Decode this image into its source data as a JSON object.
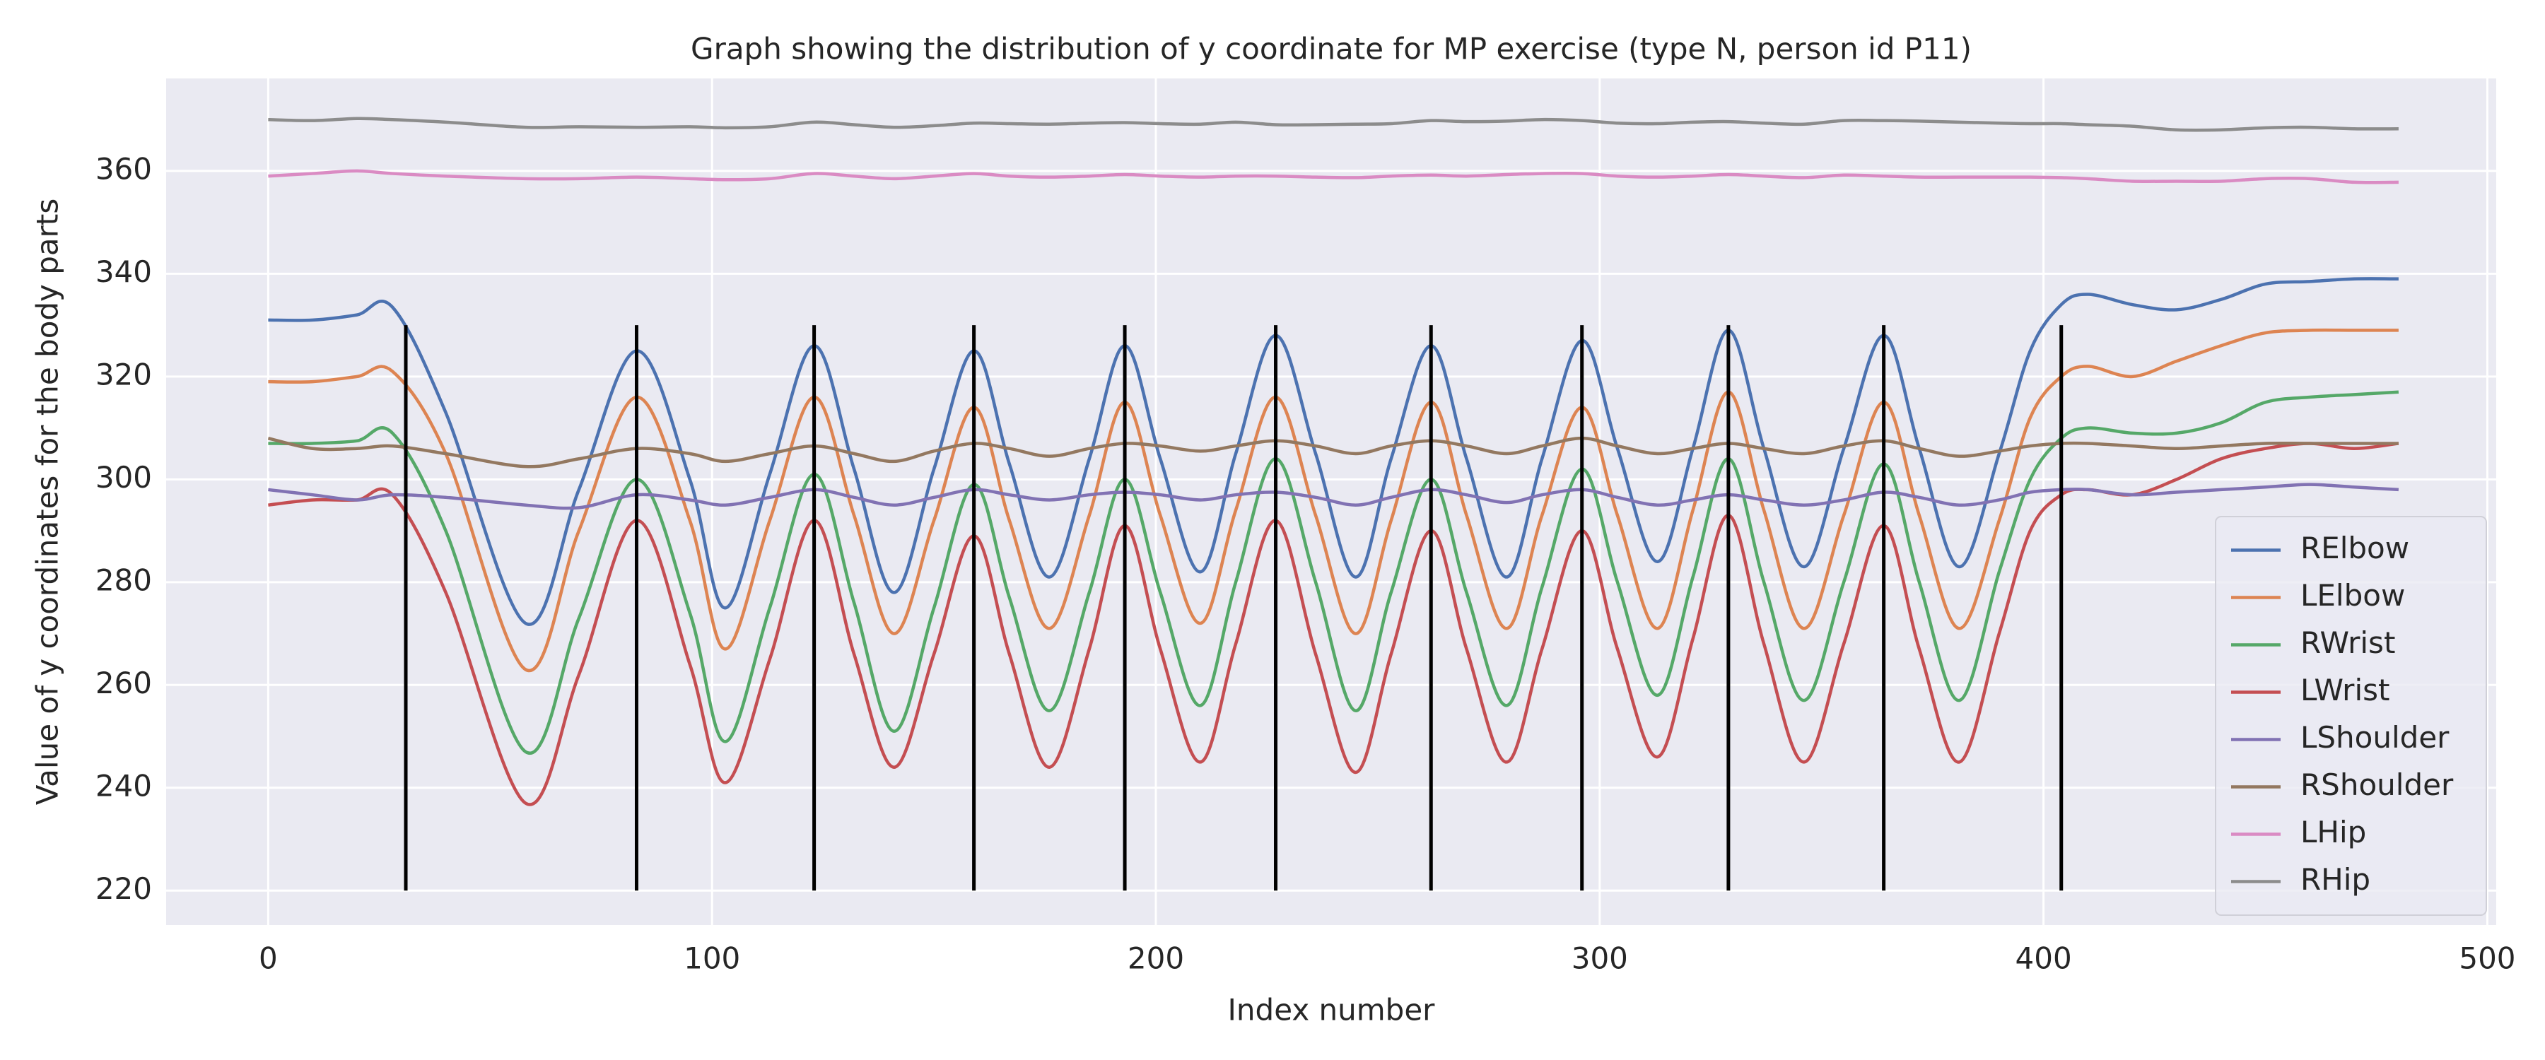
{
  "chart_data": {
    "type": "line",
    "title": "Graph showing the distribution of y coordinate for MP exercise (type N, person id P11)",
    "x_label": "Index number",
    "y_label": "Value of y coordinates for the body parts",
    "xlim": [
      -23,
      502
    ],
    "ylim": [
      213.3,
      378
    ],
    "xticks": [
      0,
      100,
      200,
      300,
      400,
      500
    ],
    "yticks": [
      220,
      240,
      260,
      280,
      300,
      320,
      340,
      360
    ],
    "grid": true,
    "legend": "lower right",
    "x": [
      0,
      10,
      20,
      28,
      40,
      58,
      70,
      83,
      95,
      103,
      113,
      123,
      132,
      141,
      150,
      159,
      167,
      176,
      185,
      193,
      201,
      210,
      218,
      227,
      236,
      245,
      253,
      262,
      270,
      279,
      287,
      296,
      304,
      313,
      321,
      329,
      337,
      346,
      355,
      364,
      372,
      381,
      390,
      397,
      404,
      410,
      420,
      430,
      440,
      450,
      460,
      470,
      480
    ],
    "series": [
      {
        "name": "RElbow",
        "color": "#4c72b0",
        "values": [
          331,
          331,
          332,
          333.5,
          313,
          272,
          298,
          325,
          300,
          275,
          301,
          326,
          302,
          278,
          302,
          325,
          303,
          281,
          304,
          326,
          304,
          282,
          305,
          328,
          305,
          281,
          304,
          326,
          304,
          281,
          304,
          327,
          306,
          284,
          306,
          329,
          306,
          283,
          306,
          328,
          306,
          283,
          305,
          325,
          334,
          336,
          334,
          333,
          335,
          338,
          338.5,
          339,
          339
        ]
      },
      {
        "name": "LElbow",
        "color": "#dd8452",
        "values": [
          319,
          319,
          320,
          321,
          305,
          263,
          290,
          316,
          292,
          267,
          292,
          316,
          293,
          270,
          292,
          314,
          292,
          271,
          293,
          315,
          293,
          272,
          294,
          316,
          293,
          270,
          292,
          315,
          293,
          271,
          293,
          314,
          293,
          271,
          294,
          317,
          294,
          271,
          293,
          315,
          293,
          271,
          292,
          312,
          320,
          322,
          320,
          323,
          326,
          328.5,
          329,
          329,
          329
        ]
      },
      {
        "name": "RWrist",
        "color": "#55a868",
        "values": [
          307,
          307,
          307.5,
          309,
          290,
          247,
          273,
          300,
          274,
          249,
          275,
          301,
          276,
          251,
          275,
          299,
          277,
          255,
          278,
          300,
          278,
          256,
          280,
          304,
          280,
          255,
          278,
          300,
          278,
          256,
          279,
          302,
          280,
          258,
          281,
          304,
          280,
          257,
          280,
          303,
          280,
          257,
          282,
          300,
          308,
          310,
          309,
          309,
          311,
          315,
          316,
          316.5,
          317
        ]
      },
      {
        "name": "LWrist",
        "color": "#c44e52",
        "values": [
          295,
          296,
          296,
          297,
          278,
          237,
          262,
          292,
          264,
          241,
          265,
          292,
          266,
          244,
          266,
          289,
          266,
          244,
          267,
          291,
          267,
          245,
          268,
          292,
          266,
          243,
          266,
          290,
          267,
          245,
          267,
          290,
          267,
          246,
          269,
          293,
          268,
          245,
          268,
          291,
          267,
          245,
          270,
          290,
          297,
          298,
          297,
          300,
          304,
          306,
          307,
          306,
          307
        ]
      },
      {
        "name": "LShoulder",
        "color": "#8172b3",
        "values": [
          298,
          297,
          296,
          297,
          296.5,
          295,
          294.5,
          297,
          296,
          295,
          296.5,
          298,
          296.5,
          295,
          296.5,
          298,
          297,
          296,
          297,
          297.5,
          297,
          296,
          297,
          297.5,
          296.5,
          295,
          296.5,
          298,
          297,
          295.5,
          297,
          298,
          296.5,
          295,
          296,
          297,
          296,
          295,
          296,
          297.5,
          296.5,
          295,
          296,
          297.5,
          298,
          298,
          297,
          297.5,
          298,
          298.5,
          299,
          298.5,
          298
        ]
      },
      {
        "name": "RShoulder",
        "color": "#937860",
        "values": [
          308,
          306,
          306,
          306.5,
          305,
          302.5,
          304,
          306,
          305,
          303.5,
          305,
          306.5,
          305,
          303.5,
          305.5,
          307,
          306,
          304.5,
          306,
          307,
          306.5,
          305.5,
          306.5,
          307.5,
          306.5,
          305,
          306.5,
          307.5,
          306.5,
          305,
          306.5,
          308,
          306.5,
          305,
          306,
          307,
          306,
          305,
          306.5,
          307.5,
          306,
          304.5,
          305.5,
          306.5,
          307,
          307,
          306.5,
          306,
          306.5,
          307,
          307,
          307,
          307
        ]
      },
      {
        "name": "LHip",
        "color": "#da8bc3",
        "values": [
          359,
          359.5,
          360,
          359.5,
          359,
          358.5,
          358.5,
          358.8,
          358.5,
          358.3,
          358.5,
          359.5,
          359,
          358.5,
          359,
          359.5,
          359,
          358.8,
          359,
          359.3,
          359,
          358.8,
          359,
          359,
          358.8,
          358.7,
          359,
          359.2,
          359,
          359.3,
          359.5,
          359.5,
          359,
          358.8,
          359,
          359.3,
          359,
          358.7,
          359.2,
          359,
          358.8,
          358.8,
          358.8,
          358.8,
          358.7,
          358.5,
          358,
          358,
          358,
          358.5,
          358.5,
          357.8,
          357.8
        ]
      },
      {
        "name": "RHip",
        "color": "#8c8c8c",
        "values": [
          370,
          369.8,
          370.2,
          370,
          369.5,
          368.5,
          368.6,
          368.5,
          368.6,
          368.4,
          368.6,
          369.5,
          369,
          368.5,
          368.8,
          369.3,
          369.2,
          369.1,
          369.3,
          369.4,
          369.2,
          369.1,
          369.5,
          369,
          369,
          369.1,
          369.2,
          369.8,
          369.6,
          369.7,
          370,
          369.8,
          369.3,
          369.2,
          369.5,
          369.6,
          369.3,
          369.1,
          369.8,
          369.8,
          369.7,
          369.5,
          369.3,
          369.2,
          369.2,
          369,
          368.7,
          368,
          368,
          368.4,
          368.5,
          368.2,
          368.2
        ]
      }
    ],
    "vlines": {
      "x": [
        31,
        83,
        123,
        159,
        193,
        227,
        262,
        296,
        329,
        364,
        404
      ],
      "ymin": 220,
      "ymax": 330,
      "color": "#000000"
    }
  }
}
